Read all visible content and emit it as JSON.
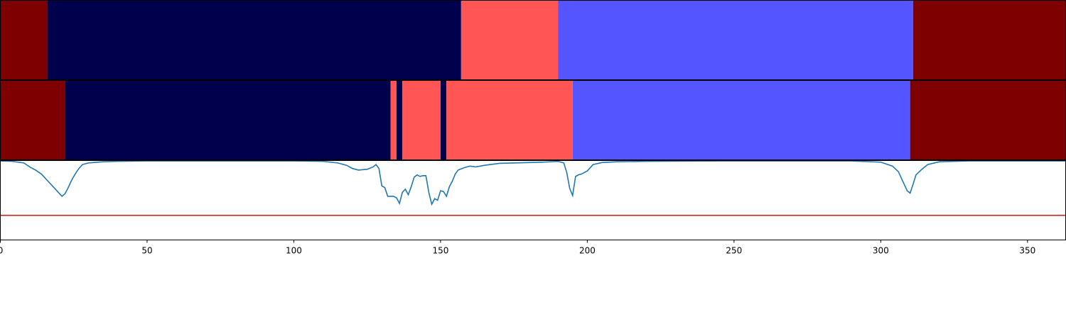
{
  "chart_data": {
    "type": "segmentation-timeline",
    "xlim": [
      0,
      363
    ],
    "xticks": [
      0,
      50,
      100,
      150,
      200,
      250,
      300,
      350
    ],
    "xtick_labels": [
      "0",
      "50",
      "100",
      "150",
      "200",
      "250",
      "300",
      "350"
    ],
    "segment_colors": {
      "dark_red": "#7f0000",
      "navy": "#00004c",
      "salmon": "#ff5555",
      "blue": "#5555ff"
    },
    "tracks": [
      {
        "segments": [
          {
            "start": 0,
            "end": 16,
            "color": "#7f0000"
          },
          {
            "start": 16,
            "end": 157,
            "color": "#00004c"
          },
          {
            "start": 157,
            "end": 190,
            "color": "#ff5555"
          },
          {
            "start": 190,
            "end": 311,
            "color": "#5555ff"
          },
          {
            "start": 311,
            "end": 363,
            "color": "#7f0000"
          }
        ]
      },
      {
        "segments": [
          {
            "start": 0,
            "end": 22,
            "color": "#7f0000"
          },
          {
            "start": 22,
            "end": 133,
            "color": "#00004c"
          },
          {
            "start": 133,
            "end": 135,
            "color": "#ff5555"
          },
          {
            "start": 135,
            "end": 137,
            "color": "#00004c"
          },
          {
            "start": 137,
            "end": 150,
            "color": "#ff5555"
          },
          {
            "start": 150,
            "end": 152,
            "color": "#00004c"
          },
          {
            "start": 152,
            "end": 195,
            "color": "#ff5555"
          },
          {
            "start": 195,
            "end": 310,
            "color": "#5555ff"
          },
          {
            "start": 310,
            "end": 363,
            "color": "#7f0000"
          }
        ]
      }
    ],
    "signal": {
      "color": "#1f77b4",
      "ylim": [
        0,
        1
      ],
      "x": [
        0,
        4,
        8,
        10,
        12,
        14,
        16,
        18,
        20,
        21,
        22,
        23,
        24,
        25,
        26,
        27,
        28,
        30,
        35,
        40,
        50,
        100,
        110,
        115,
        118,
        120,
        122,
        125,
        127,
        128,
        129,
        130,
        131,
        132,
        133,
        134,
        135,
        136,
        137,
        138,
        139,
        140,
        141,
        142,
        143,
        144,
        145,
        146,
        147,
        148,
        149,
        150,
        151,
        152,
        153,
        154,
        155,
        156,
        158,
        160,
        162,
        165,
        170,
        180,
        185,
        190,
        192,
        193,
        194,
        195,
        196,
        197,
        198,
        200,
        202,
        205,
        210,
        220,
        250,
        290,
        300,
        304,
        306,
        308,
        309,
        310,
        311,
        312,
        314,
        316,
        320,
        330,
        363
      ],
      "y": [
        0.995,
        0.99,
        0.97,
        0.92,
        0.88,
        0.83,
        0.75,
        0.67,
        0.59,
        0.55,
        0.58,
        0.65,
        0.73,
        0.8,
        0.86,
        0.91,
        0.95,
        0.97,
        0.985,
        0.99,
        0.995,
        0.995,
        0.99,
        0.97,
        0.94,
        0.9,
        0.88,
        0.89,
        0.92,
        0.95,
        0.9,
        0.68,
        0.66,
        0.55,
        0.55,
        0.55,
        0.53,
        0.46,
        0.6,
        0.64,
        0.57,
        0.67,
        0.79,
        0.82,
        0.8,
        0.81,
        0.81,
        0.6,
        0.45,
        0.52,
        0.5,
        0.62,
        0.61,
        0.55,
        0.67,
        0.74,
        0.83,
        0.88,
        0.91,
        0.93,
        0.92,
        0.94,
        0.965,
        0.975,
        0.98,
        0.99,
        0.97,
        0.85,
        0.65,
        0.56,
        0.8,
        0.82,
        0.83,
        0.87,
        0.95,
        0.975,
        0.985,
        0.99,
        0.995,
        0.995,
        0.98,
        0.93,
        0.86,
        0.7,
        0.62,
        0.59,
        0.7,
        0.82,
        0.89,
        0.95,
        0.985,
        0.995,
        0.995
      ]
    },
    "threshold": {
      "color": "#d62728",
      "y": 0.31
    }
  }
}
